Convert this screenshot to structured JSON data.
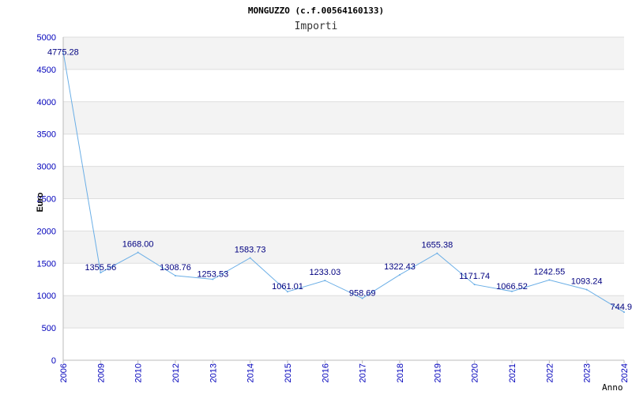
{
  "chart_data": {
    "type": "line",
    "title": "MONGUZZO (c.f.00564160133)",
    "subtitle": "Importi",
    "xlabel": "Anno",
    "ylabel": "Euro",
    "ylim": [
      0,
      5000
    ],
    "yticks": [
      "0",
      "500",
      "1000",
      "1500",
      "2000",
      "2500",
      "3000",
      "3500",
      "4000",
      "4500",
      "5000"
    ],
    "grid": true,
    "categories": [
      "2006",
      "2009",
      "2010",
      "2012",
      "2013",
      "2014",
      "2015",
      "2016",
      "2017",
      "2018",
      "2019",
      "2020",
      "2021",
      "2022",
      "2023",
      "2024"
    ],
    "series": [
      {
        "values": [
          4775.28,
          1355.56,
          1668.0,
          1308.76,
          1253.53,
          1583.73,
          1061.01,
          1233.03,
          958.69,
          1322.43,
          1655.38,
          1171.74,
          1066.52,
          1242.55,
          1093.24,
          744.9
        ],
        "labels": [
          "4775.28",
          "1355.56",
          "1668.00",
          "1308.76",
          "1253.53",
          "1583.73",
          "1061.01",
          "1233.03",
          "958.69",
          "1322.43",
          "1655.38",
          "1171.74",
          "1066.52",
          "1242.55",
          "1093.24",
          "744.9"
        ]
      }
    ],
    "colors": {
      "line": "#6aaee6",
      "axis_text": "#0000bb",
      "label_text": "#000080",
      "band": "#f3f3f3",
      "grid": "#dddddd",
      "axis": "#bbbbbb"
    }
  }
}
